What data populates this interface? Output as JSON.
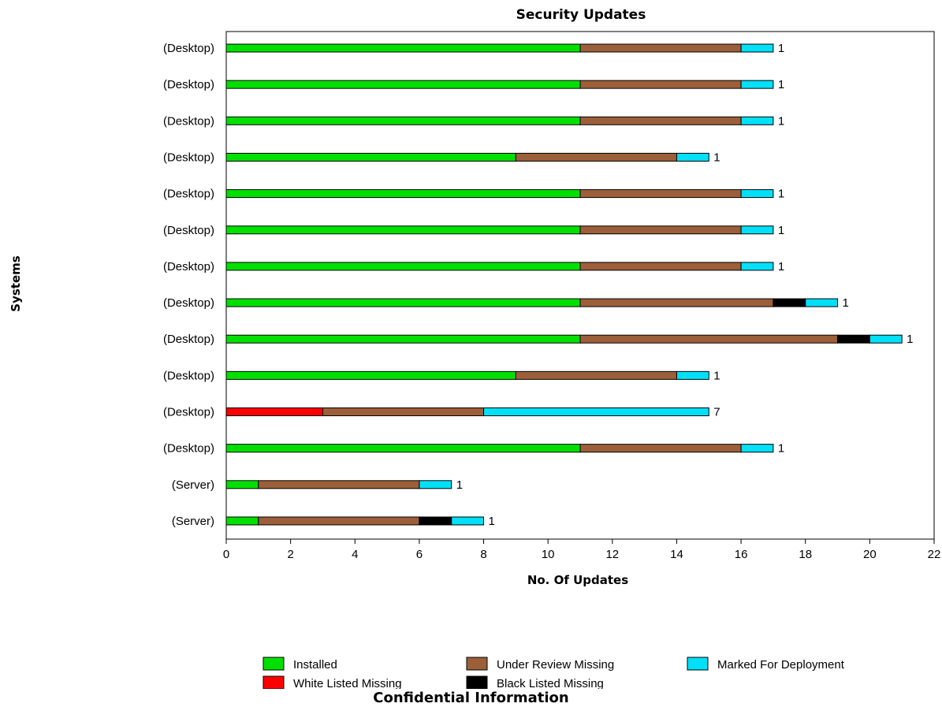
{
  "chart_data": {
    "type": "bar",
    "orientation": "horizontal",
    "stacked": true,
    "title": "Security Updates",
    "xlabel": "No. Of Updates",
    "ylabel": "Systems",
    "xlim": [
      0,
      22
    ],
    "x_ticks": [
      0,
      2,
      4,
      6,
      8,
      10,
      12,
      14,
      16,
      18,
      20,
      22
    ],
    "grid": false,
    "legend_position": "bottom",
    "categories": [
      "(Desktop)",
      "(Desktop)",
      "(Desktop)",
      "(Desktop)",
      "(Desktop)",
      "(Desktop)",
      "(Desktop)",
      "(Desktop)",
      "(Desktop)",
      "(Desktop)",
      "(Desktop)",
      "(Desktop)",
      "(Server)",
      "(Server)"
    ],
    "series": [
      {
        "name": "White Listed Missing",
        "color": "#ff0000",
        "values": [
          0,
          0,
          0,
          0,
          0,
          0,
          0,
          0,
          0,
          0,
          3,
          0,
          0,
          0
        ]
      },
      {
        "name": "Installed",
        "color": "#00e000",
        "values": [
          11,
          11,
          11,
          9,
          11,
          11,
          11,
          11,
          11,
          9,
          0,
          11,
          1,
          1
        ]
      },
      {
        "name": "Under Review Missing",
        "color": "#9c5f39",
        "values": [
          5,
          5,
          5,
          5,
          5,
          5,
          5,
          6,
          8,
          5,
          5,
          5,
          5,
          5
        ]
      },
      {
        "name": "Black Listed Missing",
        "color": "#000000",
        "values": [
          0,
          0,
          0,
          0,
          0,
          0,
          0,
          1,
          1,
          0,
          0,
          0,
          0,
          1
        ]
      },
      {
        "name": "Marked For Deployment",
        "color": "#00e0f8",
        "values": [
          1,
          1,
          1,
          1,
          1,
          1,
          1,
          1,
          1,
          1,
          7,
          1,
          1,
          1
        ]
      }
    ],
    "data_labels": [
      "1",
      "1",
      "1",
      "1",
      "1",
      "1",
      "1",
      "1",
      "1",
      "1",
      "7",
      "1",
      "1",
      "1"
    ],
    "legend_order": [
      "Installed",
      "Under Review Missing",
      "Marked For Deployment",
      "White Listed Missing",
      "Black Listed Missing"
    ]
  },
  "footer": "Confidential Information"
}
